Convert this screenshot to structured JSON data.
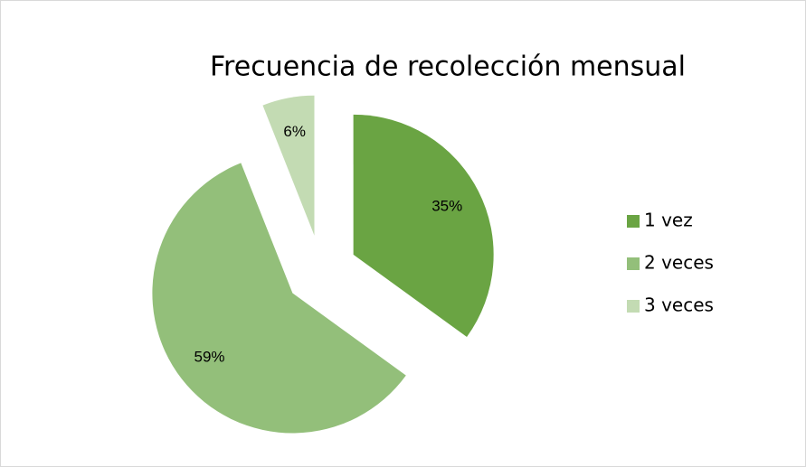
{
  "chart_data": {
    "type": "pie",
    "title": "Frecuencia de recolección mensual",
    "categories": [
      "1 vez",
      "2 veces",
      "3 veces"
    ],
    "values": [
      35,
      59,
      6
    ],
    "value_labels": [
      "35%",
      "59%",
      "6%"
    ],
    "colors": [
      "#6aa443",
      "#93bf7a",
      "#c3dbb3"
    ],
    "exploded": true,
    "legend": "right"
  }
}
